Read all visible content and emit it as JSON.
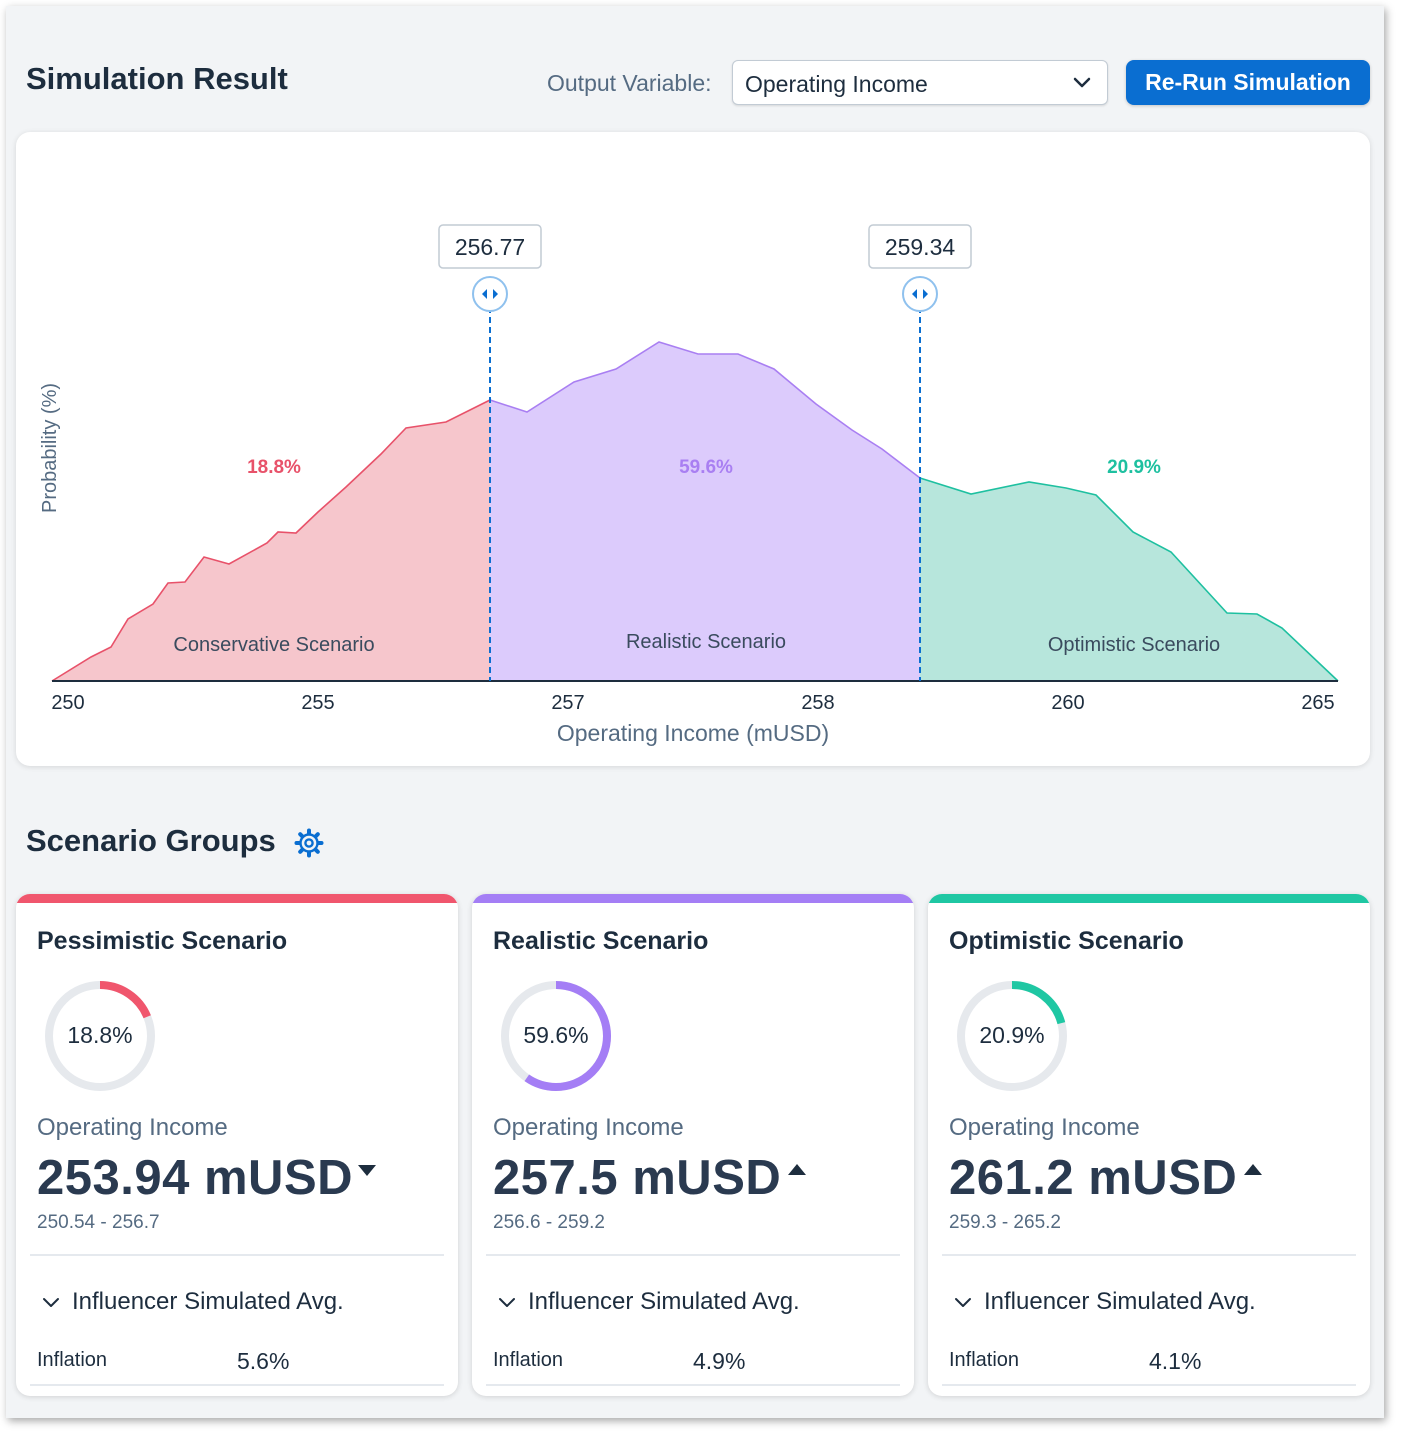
{
  "header": {
    "title": "Simulation Result",
    "output_label": "Output Variable:",
    "output_value": "Operating Income",
    "rerun_label": "Re-Run Simulation",
    "accent": "#0a6ed1"
  },
  "chart_data": {
    "type": "area",
    "title": "",
    "xlabel": "Operating Income (mUSD)",
    "ylabel": "Probability (%)",
    "x_ticks": [
      "250",
      "255",
      "257",
      "258",
      "260",
      "265"
    ],
    "thresholds": [
      "256.77",
      "259.34"
    ],
    "regions": [
      {
        "name": "Conservative Scenario",
        "pct": "18.8%",
        "color": "#e8526a",
        "fill": "#f6c6cc"
      },
      {
        "name": "Realistic Scenario",
        "pct": "59.6%",
        "color": "#a97ff2",
        "fill": "#dccbfc"
      },
      {
        "name": "Optimistic Scenario",
        "pct": "20.9%",
        "color": "#1ec0a0",
        "fill": "#b7e6dc"
      }
    ],
    "grid": false
  },
  "scenario_groups": {
    "title": "Scenario Groups",
    "settings_icon": "gear-icon",
    "cards": [
      {
        "title": "Pessimistic Scenario",
        "color": "#f0566d",
        "pct_label": "18.8%",
        "pct": 18.8,
        "metric": "Operating Income",
        "value": "253.94 mUSD",
        "trend": "down",
        "range": "250.54 - 256.7",
        "influencer_label": "Influencer Simulated Avg.",
        "inflation_label": "Inflation",
        "inflation_value": "5.6%"
      },
      {
        "title": "Realistic Scenario",
        "color": "#a47ef5",
        "pct_label": "59.6%",
        "pct": 59.6,
        "metric": "Operating Income",
        "value": "257.5 mUSD",
        "trend": "up",
        "range": "256.6 - 259.2",
        "influencer_label": "Influencer Simulated Avg.",
        "inflation_label": "Inflation",
        "inflation_value": "4.9%"
      },
      {
        "title": "Optimistic Scenario",
        "color": "#1fc7a3",
        "pct_label": "20.9%",
        "pct": 20.9,
        "metric": "Operating Income",
        "value": "261.2 mUSD",
        "trend": "up",
        "range": "259.3 - 265.2",
        "influencer_label": "Influencer Simulated Avg.",
        "inflation_label": "Inflation",
        "inflation_value": "4.1%"
      }
    ]
  }
}
